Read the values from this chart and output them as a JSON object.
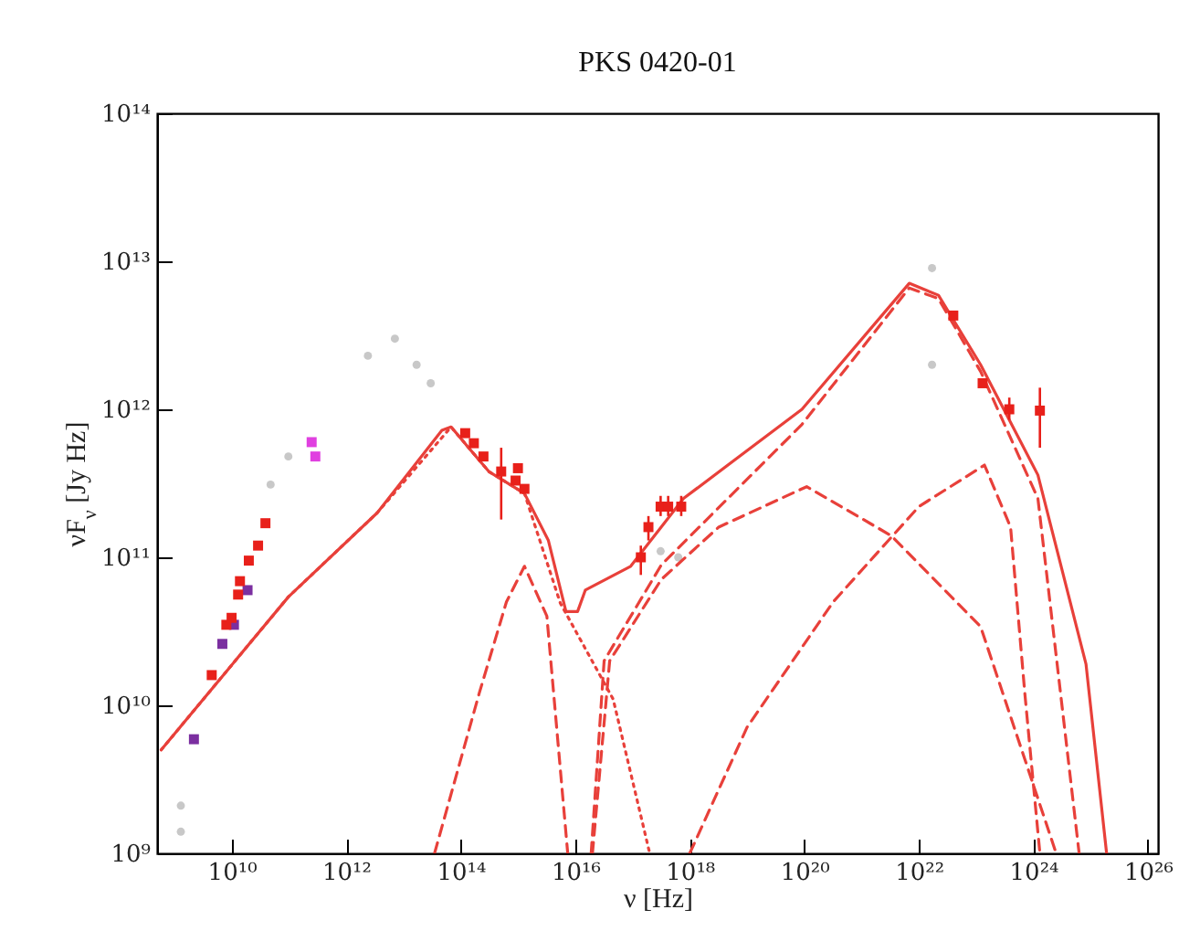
{
  "chart_data": {
    "type": "scatter",
    "title": "PKS 0420-01",
    "xlabel": "ν [Hz]",
    "ylabel": "νF$_{ν}$ [Jy Hz]",
    "log": "xy",
    "grid": false,
    "marker": "square",
    "xlim": [
      500000000.0,
      1.5e+26
    ],
    "ylim": [
      1000000000.0,
      100000000000000.0
    ],
    "xticks": [
      {
        "value": 10000000000.0,
        "label": "10¹⁰"
      },
      {
        "value": 1000000000000.0,
        "label": "10¹²"
      },
      {
        "value": 100000000000000.0,
        "label": "10¹⁴"
      },
      {
        "value": 1e+16,
        "label": "10¹⁶"
      },
      {
        "value": 1e+18,
        "label": "10¹⁸"
      },
      {
        "value": 1e+20,
        "label": "10²⁰"
      },
      {
        "value": 1e+22,
        "label": "10²²"
      },
      {
        "value": 1e+24,
        "label": "10²⁴"
      },
      {
        "value": 1e+26,
        "label": "10²⁶"
      }
    ],
    "yticks": [
      {
        "value": 1000000000.0,
        "label": "10⁹"
      },
      {
        "value": 10000000000.0,
        "label": "10¹⁰"
      },
      {
        "value": 100000000000.0,
        "label": "10¹¹"
      },
      {
        "value": 1000000000000.0,
        "label": "10¹²"
      },
      {
        "value": 10000000000000.0,
        "label": "10¹³"
      },
      {
        "value": 100000000000000.0,
        "label": "10¹⁴"
      }
    ],
    "series": [
      {
        "color": "#c8c8c8",
        "marker": "circle",
        "x": [
          2400000000000.0,
          7100000000000.0,
          17000000000000.0,
          30000000000000.0,
          98000000000.0,
          48000000000.0,
          1300000000.0,
          1300000000.0,
          1.7e+22,
          1.7e+22,
          3.1e+17,
          6.3e+17
        ],
        "values": [
          2300000000000.0,
          3000000000000.0,
          2000000000000.0,
          1500000000000.0,
          480000000000.0,
          310000000000.0,
          2100000000.0,
          1400000000.0,
          2000000000000.0,
          9000000000000.0,
          110000000000.0,
          100000000000.0
        ]
      },
      {
        "type": "line",
        "marker": "none",
        "color": "#e8403a",
        "line_style": "solid",
        "x": [
          590000000.0,
          98000000000.0,
          3500000000000.0,
          47000000000000.0,
          68000000000000.0,
          310000000000000.0,
          1300000000000000.0,
          3400000000000000.0,
          6900000000000000.0,
          1.1e+16,
          1.5e+16,
          9.3e+16,
          7.8e+17,
          9.1e+19,
          6.8e+21,
          2.2e+22,
          1.2e+23,
          1.2e+24,
          8.3e+24,
          1.9e+25
        ],
        "values": [
          5000000000.0,
          54000000000.0,
          200000000000.0,
          720000000000.0,
          760000000000.0,
          380000000000.0,
          270000000000.0,
          130000000000.0,
          43000000000.0,
          43000000000.0,
          60000000000.0,
          87000000000.0,
          250000000000.0,
          1000000000000.0,
          7100000000000.0,
          5900000000000.0,
          2000000000000.0,
          360000000000.0,
          19000000000.0,
          1000000000.0
        ]
      },
      {
        "type": "line",
        "marker": "none",
        "color": "#e8403a",
        "line_style": "dotted",
        "x": [
          590000000.0,
          98000000000.0,
          3500000000000.0,
          68000000000000.0,
          310000000000000.0,
          1300000000000000.0,
          5500000000000000.0,
          4.6e+16,
          2e+17
        ],
        "values": [
          5000000000.0,
          54000000000.0,
          200000000000.0,
          760000000000.0,
          380000000000.0,
          270000000000.0,
          49000000000.0,
          11000000000.0,
          1000000000.0
        ]
      },
      {
        "type": "line",
        "marker": "none",
        "color": "#e8403a",
        "line_style": "dashed",
        "x": [
          35000000000000.0,
          210000000000000.0,
          630000000000000.0,
          1300000000000000.0,
          3200000000000000.0,
          7400000000000000.0
        ],
        "values": [
          1000000000.0,
          12000000000.0,
          50000000000.0,
          87000000000.0,
          40000000000.0,
          1000000000.0
        ]
      },
      {
        "type": "line",
        "marker": "none",
        "color": "#e8403a",
        "line_style": "dashed",
        "x": [
          2e+16,
          4e+16,
          3.2e+17,
          3.2e+18,
          1.1e+20,
          3.3e+21,
          1.2e+23,
          2.5e+24
        ],
        "values": [
          1000000000.0,
          20000000000.0,
          71000000000.0,
          160000000000.0,
          300000000000.0,
          140000000000.0,
          34000000000.0,
          1000000000.0
        ]
      },
      {
        "type": "line",
        "marker": "none",
        "color": "#e8403a",
        "line_style": "dashed",
        "x": [
          1.9e+16,
          3.2e+16,
          3.2e+17,
          9.1e+19,
          6.8e+21,
          2.2e+22,
          1.2e+23,
          1.2e+24,
          6.3e+24
        ],
        "values": [
          1000000000.0,
          20000000000.0,
          89000000000.0,
          790000000000.0,
          6600000000000.0,
          5600000000000.0,
          1800000000000.0,
          250000000000.0,
          1000000000.0
        ]
      },
      {
        "type": "line",
        "marker": "none",
        "color": "#e8403a",
        "line_style": "dashed",
        "x": [
          1e+18,
          1e+19,
          3.2e+20,
          1e+22,
          1.4e+23,
          4e+23,
          7.1e+23,
          1.3e+24
        ],
        "values": [
          1000000000.0,
          7100000000.0,
          50000000000.0,
          220000000000.0,
          420000000000.0,
          160000000000.0,
          12000000000.0,
          1000000000.0
        ]
      },
      {
        "color": "#7b2fa0",
        "x": [
          2200000000.0,
          6900000000.0,
          11000000000.0,
          19000000000.0
        ],
        "values": [
          5900000000.0,
          26000000000.0,
          35000000000.0,
          60000000000.0
        ]
      },
      {
        "color": "#e040e0",
        "x": [
          250000000000.0,
          290000000000.0
        ],
        "values": [
          600000000000.0,
          480000000000.0
        ]
      },
      {
        "color": "#e8201a",
        "x": [
          4500000000.0,
          8100000000.0,
          10000000000.0,
          13000000000.0,
          14000000000.0,
          20000000000.0,
          29000000000.0,
          39000000000.0,
          120000000000000.0,
          170000000000000.0,
          250000000000000.0,
          510000000000000.0,
          910000000000000.0,
          1000000000000000.0,
          1300000000000000.0,
          1.4e+17,
          1.9e+17,
          3.1e+17,
          4.2e+17,
          7.1e+17,
          4e+22,
          1.3e+23,
          3.8e+23,
          1.3e+24
        ],
        "values": [
          16000000000.0,
          35000000000.0,
          39000000000.0,
          56000000000.0,
          69000000000.0,
          95000000000.0,
          120000000000.0,
          170000000000.0,
          690000000000.0,
          590000000000.0,
          480000000000.0,
          380000000000.0,
          330000000000.0,
          400000000000.0,
          290000000000.0,
          100000000000.0,
          160000000000.0,
          220000000000.0,
          220000000000.0,
          220000000000.0,
          4300000000000.0,
          1500000000000.0,
          1000000000000.0,
          980000000000.0
        ],
        "errors": [
          null,
          null,
          null,
          null,
          null,
          null,
          null,
          null,
          null,
          null,
          null,
          [
            180000000000.0,
            550000000000.0
          ],
          null,
          null,
          null,
          [
            76000000000.0,
            120000000000.0
          ],
          [
            130000000000.0,
            190000000000.0
          ],
          [
            190000000000.0,
            260000000000.0
          ],
          [
            190000000000.0,
            260000000000.0
          ],
          [
            190000000000.0,
            260000000000.0
          ],
          null,
          null,
          [
            850000000000.0,
            1200000000000.0
          ],
          [
            550000000000.0,
            1400000000000.0
          ]
        ]
      }
    ]
  }
}
